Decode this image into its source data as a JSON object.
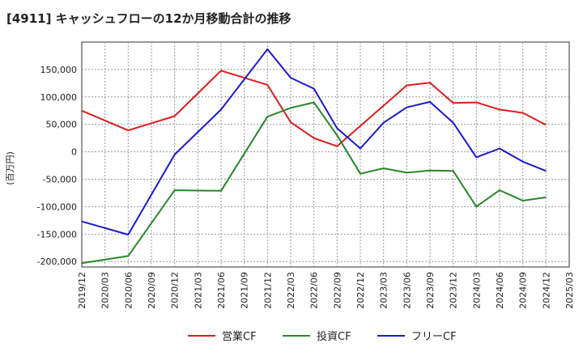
{
  "chart_data": {
    "type": "line",
    "title": "[4911]  キャッシュフローの12か月移動合計の推移",
    "ylabel": "(百万円)",
    "xlabel": "",
    "ylim": [
      -210000,
      200000
    ],
    "yticks": [
      150000,
      100000,
      50000,
      0,
      -50000,
      -100000,
      -150000,
      -200000
    ],
    "ytick_labels": [
      "150,000",
      "100,000",
      "50,000",
      "0",
      "-50,000",
      "-100,000",
      "-150,000",
      "-200,000"
    ],
    "categories": [
      "2019/12",
      "2020/03",
      "2020/06",
      "2020/09",
      "2020/12",
      "2021/03",
      "2021/06",
      "2021/09",
      "2021/12",
      "2022/03",
      "2022/06",
      "2022/09",
      "2022/12",
      "2023/03",
      "2023/06",
      "2023/09",
      "2023/12",
      "2024/03",
      "2024/06",
      "2024/09",
      "2024/12",
      "2025/03"
    ],
    "grid": true,
    "legend_position": "bottom",
    "series": [
      {
        "name": "営業CF",
        "color": "#dd1c1c",
        "values": [
          75000,
          null,
          39000,
          null,
          65000,
          null,
          148000,
          null,
          122000,
          54000,
          25000,
          10000,
          null,
          null,
          121000,
          126000,
          89000,
          90000,
          77000,
          71000,
          49000,
          null
        ]
      },
      {
        "name": "投資CF",
        "color": "#2a862a",
        "values": [
          -203000,
          null,
          -190000,
          null,
          -70000,
          null,
          -71000,
          null,
          64000,
          80000,
          90000,
          30000,
          -40000,
          -30000,
          -38000,
          -34000,
          -35000,
          -100000,
          -70000,
          -89000,
          -83000,
          null
        ]
      },
      {
        "name": "フリーCF",
        "color": "#1a1ad0",
        "values": [
          -127000,
          null,
          -151000,
          null,
          -5000,
          null,
          77000,
          null,
          187000,
          135000,
          115000,
          43000,
          6000,
          53000,
          81000,
          91000,
          53000,
          -10000,
          6000,
          -18000,
          -35000,
          null
        ]
      }
    ]
  }
}
